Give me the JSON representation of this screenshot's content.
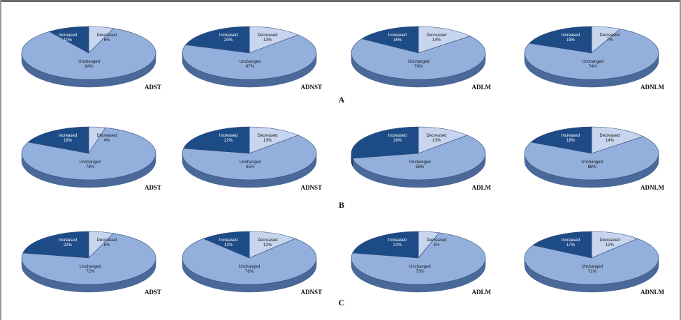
{
  "colors": {
    "increased": "#1d4b86",
    "increased_side": "#132f55",
    "decreased": "#c7d5ee",
    "decreased_side": "#8fa5c6",
    "unchanged": "#93afdc",
    "unchanged_side": "#4a6898",
    "edge": "#2e4c7a"
  },
  "chart_data": [
    {
      "panel": "A",
      "charts": [
        {
          "type": "pie",
          "label": "ADST",
          "slices": [
            {
              "name": "Increased",
              "value": 10
            },
            {
              "name": "Decreased",
              "value": 6
            },
            {
              "name": "Unchanged",
              "value": 84
            }
          ]
        },
        {
          "type": "pie",
          "label": "ADNST",
          "slices": [
            {
              "name": "Increased",
              "value": 20
            },
            {
              "name": "Decreased",
              "value": 13
            },
            {
              "name": "Unchanged",
              "value": 67
            }
          ]
        },
        {
          "type": "pie",
          "label": "ADLM",
          "slices": [
            {
              "name": "Increased",
              "value": 16
            },
            {
              "name": "Decreased",
              "value": 14
            },
            {
              "name": "Unchanged",
              "value": 70
            }
          ]
        },
        {
          "type": "pie",
          "label": "ADNLM",
          "slices": [
            {
              "name": "Increased",
              "value": 19
            },
            {
              "name": "Decreased",
              "value": 7
            },
            {
              "name": "Unchanged",
              "value": 74
            }
          ]
        }
      ]
    },
    {
      "panel": "B",
      "charts": [
        {
          "type": "pie",
          "label": "ADST",
          "slices": [
            {
              "name": "Increased",
              "value": 18
            },
            {
              "name": "Decreased",
              "value": 4
            },
            {
              "name": "Unchanged",
              "value": 78
            }
          ]
        },
        {
          "type": "pie",
          "label": "ADNST",
          "slices": [
            {
              "name": "Increased",
              "value": 22
            },
            {
              "name": "Decreased",
              "value": 13
            },
            {
              "name": "Unchanged",
              "value": 65
            }
          ]
        },
        {
          "type": "pie",
          "label": "ADLM",
          "slices": [
            {
              "name": "Increased",
              "value": 28
            },
            {
              "name": "Decreased",
              "value": 13
            },
            {
              "name": "Unchanged",
              "value": 59
            }
          ]
        },
        {
          "type": "pie",
          "label": "ADNLM",
          "slices": [
            {
              "name": "Increased",
              "value": 18
            },
            {
              "name": "Decreased",
              "value": 14
            },
            {
              "name": "Unchanged",
              "value": 68
            }
          ]
        }
      ]
    },
    {
      "panel": "C",
      "charts": [
        {
          "type": "pie",
          "label": "ADST",
          "slices": [
            {
              "name": "Increased",
              "value": 22
            },
            {
              "name": "Decreased",
              "value": 6
            },
            {
              "name": "Unchanged",
              "value": 72
            }
          ]
        },
        {
          "type": "pie",
          "label": "ADNST",
          "slices": [
            {
              "name": "Increased",
              "value": 12
            },
            {
              "name": "Decreased",
              "value": 12
            },
            {
              "name": "Unchanged",
              "value": 76
            }
          ]
        },
        {
          "type": "pie",
          "label": "ADLM",
          "slices": [
            {
              "name": "Increased",
              "value": 22
            },
            {
              "name": "Decreased",
              "value": 5
            },
            {
              "name": "Unchanged",
              "value": 73
            }
          ]
        },
        {
          "type": "pie",
          "label": "ADNLM",
          "slices": [
            {
              "name": "Increased",
              "value": 17
            },
            {
              "name": "Decreased",
              "value": 12
            },
            {
              "name": "Unchanged",
              "value": 71
            }
          ]
        }
      ]
    }
  ]
}
